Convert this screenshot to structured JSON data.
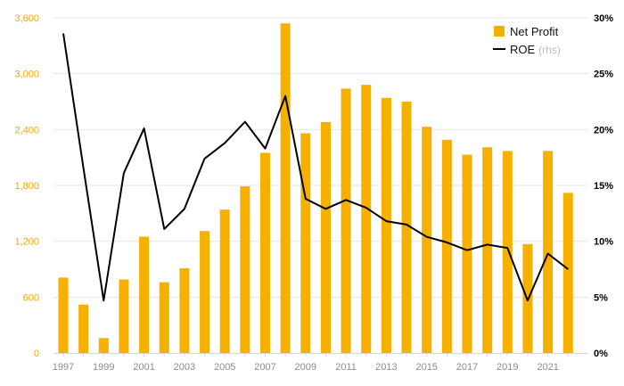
{
  "chart_data": {
    "type": "bar+line",
    "title": "",
    "years": [
      1997,
      1998,
      1999,
      2000,
      2001,
      2002,
      2003,
      2004,
      2005,
      2006,
      2007,
      2008,
      2009,
      2010,
      2011,
      2012,
      2013,
      2014,
      2015,
      2016,
      2017,
      2018,
      2019,
      2020,
      2021,
      2022
    ],
    "x_tick_labels": [
      "1997",
      "1999",
      "2001",
      "2003",
      "2005",
      "2007",
      "2009",
      "2011",
      "2013",
      "2015",
      "2017",
      "2019",
      "2021"
    ],
    "series": [
      {
        "name": "Net Profit",
        "type": "bar",
        "axis": "left",
        "color": "#f5b000",
        "values": [
          810,
          520,
          160,
          790,
          1250,
          760,
          910,
          1310,
          1540,
          1790,
          2150,
          3540,
          2360,
          2480,
          2840,
          2880,
          2740,
          2700,
          2430,
          2290,
          2130,
          2210,
          2170,
          1170,
          2170,
          1720
        ]
      },
      {
        "name": "ROE",
        "suffix": "(rhs)",
        "type": "line",
        "axis": "right",
        "color": "#000000",
        "values": [
          28.6,
          16.5,
          4.7,
          16.1,
          20.1,
          11.1,
          12.9,
          17.4,
          18.8,
          20.7,
          18.3,
          23.0,
          13.8,
          12.9,
          13.7,
          13.0,
          11.8,
          11.5,
          10.4,
          9.9,
          9.2,
          9.7,
          9.4,
          4.7,
          8.9,
          7.5
        ]
      }
    ],
    "y_left": {
      "ylim": [
        0,
        3600
      ],
      "ticks": [
        "0",
        "600",
        "1,200",
        "1,800",
        "2,400",
        "3,000",
        "3,600"
      ]
    },
    "y_right": {
      "ylim": [
        0,
        30
      ],
      "ticks": [
        "0%",
        "5%",
        "10%",
        "15%",
        "20%",
        "25%",
        "30%"
      ]
    },
    "legend_position": "top-right",
    "grid": true
  }
}
